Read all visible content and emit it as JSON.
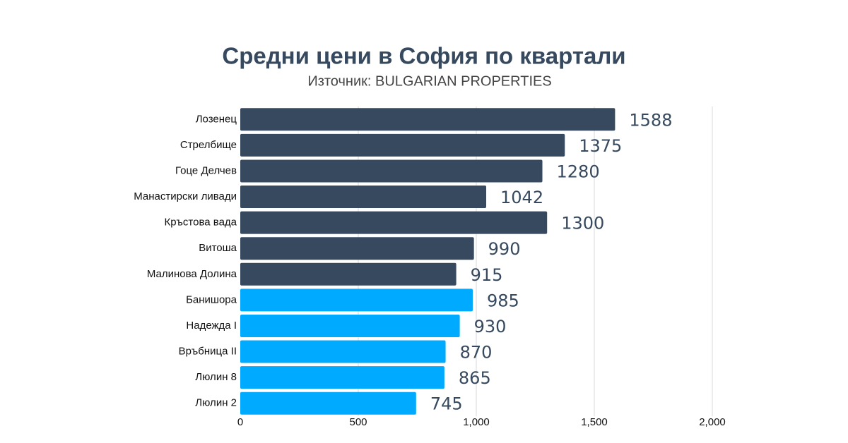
{
  "chart_data": {
    "type": "hbar",
    "title": "Средни цени в София по квартали",
    "subtitle": "Източник: BULGARIAN PROPERTIES",
    "categories": [
      "Лозенец",
      "Стрелбище",
      "Гоце Делчев",
      "Манастирски ливади",
      "Кръстова вада",
      "Витоша",
      "Малинова Долина",
      "Банишора",
      "Надежда I",
      "Връбница II",
      "Люлин 8",
      "Люлин 2"
    ],
    "values": [
      1588,
      1375,
      1280,
      1042,
      1300,
      990,
      915,
      985,
      930,
      870,
      865,
      745
    ],
    "colors": [
      "#36495f",
      "#36495f",
      "#36495f",
      "#36495f",
      "#36495f",
      "#36495f",
      "#36495f",
      "#00aaff",
      "#00aaff",
      "#00aaff",
      "#00aaff",
      "#00aaff"
    ],
    "xlim": [
      0,
      2000
    ],
    "xticks": [
      0,
      500,
      {
        "value": 1000,
        "label": "1,000"
      },
      {
        "value": 1500,
        "label": "1,500"
      },
      {
        "value": 2000,
        "label": "2,000"
      }
    ],
    "grid": true
  }
}
